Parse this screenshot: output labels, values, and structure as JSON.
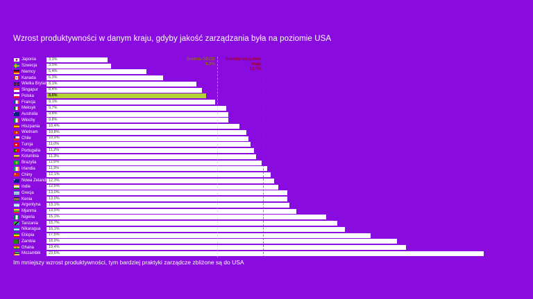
{
  "title": "Wzrost produktywności w danym kraju, gdyby jakość zarządzania była na poziomie USA",
  "footnote": "Im mniejszy wzrost produktywności, tym bardziej praktyki zarządcze zbliżone są do USA",
  "colors": {
    "background": "#890bdf",
    "bar": "#ffffff",
    "highlight_bar": "#b2d235",
    "text": "#ffffff",
    "value_text": "#3a3a3a",
    "oecd_annotation": "#8f6e00",
    "oecd_line": "rgba(200,212,110,0.65)",
    "all_countries_annotation": "#a60023",
    "all_countries_line": "rgba(205,20,70,0.7)"
  },
  "annotations": {
    "oecd": {
      "label": "Średnia OECD",
      "value_label": "9,2%",
      "value": 9.2
    },
    "all": {
      "label": "Średnia wszystkie kraje",
      "value_label": "11,7%",
      "value": 11.7
    }
  },
  "chart_data": {
    "type": "bar",
    "orientation": "horizontal",
    "unit": "%",
    "xlim": [
      0,
      25
    ],
    "grid": false,
    "highlight_category": "Polska",
    "reference_lines": [
      {
        "name": "Średnia OECD",
        "value": 9.2
      },
      {
        "name": "Średnia wszystkie kraje",
        "value": 11.7
      }
    ],
    "rows": [
      {
        "country": "Japonia",
        "value": 3.3,
        "label": "3,3%",
        "flag": "japan",
        "flag_css": "radial-gradient(circle at 50% 50%, #bc002d 0 28%, #fff 30%)"
      },
      {
        "country": "Szwecja",
        "value": 3.5,
        "label": "3,5%",
        "flag": "sweden",
        "flag_css": "linear-gradient(0deg, rgba(0,0,0,0) 35%, #fecc00 35% 62%, rgba(0,0,0,0) 62%), linear-gradient(90deg, #006aa7 0 28%, #fecc00 28% 45%, #006aa7 45%)"
      },
      {
        "country": "Niemcy",
        "value": 5.4,
        "label": "5,4%",
        "flag": "germany",
        "flag_css": "linear-gradient(180deg, #1a1a1a 0 33%, #dd0000 33% 66%, #ffce00 66%)"
      },
      {
        "country": "Kanada",
        "value": 6.3,
        "label": "6,3%",
        "flag": "canada",
        "flag_css": "radial-gradient(circle at 50% 50%, #d52b1e 0 18%, rgba(0,0,0,0) 20%), linear-gradient(90deg, #d52b1e 0 28%, #fff 28% 72%, #d52b1e 72%)"
      },
      {
        "country": "Wielka Brytania",
        "value": 8.1,
        "label": "8,1%",
        "flag": "united-kingdom",
        "flag_css": "linear-gradient(0deg, rgba(0,0,0,0) 36%, #c8102e 36% 62%, rgba(0,0,0,0) 62%), linear-gradient(90deg, #012169 0 40%, #c8102e 40% 58%, #012169 58%)"
      },
      {
        "country": "Singapur",
        "value": 8.4,
        "label": "8,4%",
        "flag": "singapore",
        "flag_css": "linear-gradient(180deg, #ef3340 0 50%, #fff 50%)"
      },
      {
        "country": "Polska",
        "value": 8.6,
        "label": "8,6%",
        "flag": "poland",
        "flag_css": "linear-gradient(180deg, #fff 0 50%, #dc143c 50%)"
      },
      {
        "country": "Francja",
        "value": 9.1,
        "label": "9,1%",
        "flag": "france",
        "flag_css": "linear-gradient(90deg, #0055a4 0 33%, #fff 33% 66%, #ef4135 66%)"
      },
      {
        "country": "Meksyk",
        "value": 9.7,
        "label": "9,7%",
        "flag": "mexico",
        "flag_css": "linear-gradient(90deg, #006847 0 33%, #fff 33% 66%, #ce1126 66%)"
      },
      {
        "country": "Australia",
        "value": 9.8,
        "label": "9,8%",
        "flag": "australia",
        "flag_css": "linear-gradient(135deg, #fff 0 12%, #00247d 12%)"
      },
      {
        "country": "Włochy",
        "value": 9.8,
        "label": "9,8%",
        "flag": "italy",
        "flag_css": "linear-gradient(90deg, #009246 0 33%, #fff 33% 66%, #ce2b37 66%)"
      },
      {
        "country": "Hiszpania",
        "value": 10.4,
        "label": "10,4%",
        "flag": "spain",
        "flag_css": "linear-gradient(180deg, #aa151b 0 25%, #f1bf00 25% 75%, #aa151b 75%)"
      },
      {
        "country": "Wietnam",
        "value": 10.8,
        "label": "10,8%",
        "flag": "vietnam",
        "flag_css": "radial-gradient(circle at 50% 50%, #ffff00 0 22%, #da251d 24%)"
      },
      {
        "country": "Chile",
        "value": 10.9,
        "label": "10,9%",
        "flag": "chile",
        "flag_css": "linear-gradient(180deg, rgba(0,0,0,0) 0 50%, #d52b1e 50%), linear-gradient(90deg, #0039a6 0 30%, #fff 30%)"
      },
      {
        "country": "Turcja",
        "value": 11.0,
        "label": "11,0%",
        "flag": "turkey",
        "flag_css": "radial-gradient(circle at 42% 50%, #fff 0 20%, #e30a17 22%)"
      },
      {
        "country": "Portugalia",
        "value": 11.2,
        "label": "11,2%",
        "flag": "portugal",
        "flag_css": "radial-gradient(circle at 40% 50%, #ffe100 0 16%, rgba(0,0,0,0) 18%), linear-gradient(90deg, #006600 0 40%, #ff0000 40%)"
      },
      {
        "country": "Kolumbia",
        "value": 11.3,
        "label": "11,3%",
        "flag": "colombia",
        "flag_css": "linear-gradient(180deg, #fcd116 0 50%, #003893 50% 75%, #ce1126 75%)"
      },
      {
        "country": "Brazylia",
        "value": 11.6,
        "label": "11,6%",
        "flag": "brazil",
        "flag_css": "radial-gradient(circle at 50% 50%, #002776 0 12%, #ffdf00 13% 30%, #009c3b 32%)"
      },
      {
        "country": "Irlandia",
        "value": 11.9,
        "label": "11,9%",
        "flag": "ireland",
        "flag_css": "linear-gradient(90deg, #169b62 0 33%, #fff 33% 66%, #ff883e 66%)"
      },
      {
        "country": "Chiny",
        "value": 12.1,
        "label": "12,1%",
        "flag": "china",
        "flag_css": "radial-gradient(circle at 22% 32%, #ffde00 0 14%, #de2910 16%)"
      },
      {
        "country": "Nowa Zelandia",
        "value": 12.3,
        "label": "12,3%",
        "flag": "new-zealand",
        "flag_css": "linear-gradient(135deg, #fff 0 12%, #00247d 12%)"
      },
      {
        "country": "Indie",
        "value": 12.5,
        "label": "12,5%",
        "flag": "india",
        "flag_css": "linear-gradient(180deg, #ff9933 0 33%, #fff 33% 66%, #138808 66%)"
      },
      {
        "country": "Grecja",
        "value": 13.0,
        "label": "13,0%",
        "flag": "greece",
        "flag_css": "linear-gradient(180deg, #0d5eaf 0 20%, #fff 20% 40%, #0d5eaf 40% 60%, #fff 60% 80%, #0d5eaf 80%)"
      },
      {
        "country": "Kenia",
        "value": 13.0,
        "label": "13,0%",
        "flag": "kenya",
        "flag_css": "linear-gradient(180deg, #111 0 30%, #fff 30% 38%, #bb0000 38% 62%, #fff 62% 70%, #006600 70%)"
      },
      {
        "country": "Argentyna",
        "value": 13.1,
        "label": "13,1%",
        "flag": "argentina",
        "flag_css": "linear-gradient(180deg, #74acdf 0 33%, #fff 33% 66%, #74acdf 66%)"
      },
      {
        "country": "Mjanma",
        "value": 13.5,
        "label": "13,5%",
        "flag": "myanmar",
        "flag_css": "linear-gradient(180deg, #fecb00 0 33%, #34b233 33% 66%, #ea2839 66%)"
      },
      {
        "country": "Nigeria",
        "value": 15.1,
        "label": "15,1%",
        "flag": "nigeria",
        "flag_css": "linear-gradient(90deg, #008751 0 33%, #fff 33% 66%, #008751 66%)"
      },
      {
        "country": "Tanzania",
        "value": 15.7,
        "label": "15,7%",
        "flag": "tanzania",
        "flag_css": "linear-gradient(135deg, #1eb53a 0 38%, #fcd116 38% 42%, #000 42% 58%, #fcd116 58% 62%, #00a3dd 62%)"
      },
      {
        "country": "Nikaragua",
        "value": 16.1,
        "label": "16,1%",
        "flag": "nicaragua",
        "flag_css": "linear-gradient(180deg, #0067c6 0 33%, #fff 33% 66%, #0067c6 66%)"
      },
      {
        "country": "Etiopia",
        "value": 17.5,
        "label": "17,5%",
        "flag": "ethiopia",
        "flag_css": "linear-gradient(180deg, #078930 0 33%, #fcdd09 33% 66%, #da121a 66%)"
      },
      {
        "country": "Zambia",
        "value": 18.9,
        "label": "18,9%",
        "flag": "zambia",
        "flag_css": "linear-gradient(90deg, #198a00 0 60%, #de2010 60% 73%, #111 73% 86%, #ef7d00 86%)"
      },
      {
        "country": "Ghana",
        "value": 19.4,
        "label": "19,4%",
        "flag": "ghana",
        "flag_css": "radial-gradient(circle at 50% 50%, #111 0 14%, rgba(0,0,0,0) 16%), linear-gradient(180deg, #ce1126 0 33%, #fcd116 33% 66%, #006b3f 66%)"
      },
      {
        "country": "Mozambik",
        "value": 23.6,
        "label": "23,6%",
        "flag": "mozambique",
        "flag_css": "linear-gradient(115deg, #d21034 0 22%, rgba(0,0,0,0) 22%), linear-gradient(180deg, #009639 0 30%, #fff 30% 36%, #000 36% 64%, #fff 64% 70%, #ffd100 70%)"
      }
    ]
  }
}
